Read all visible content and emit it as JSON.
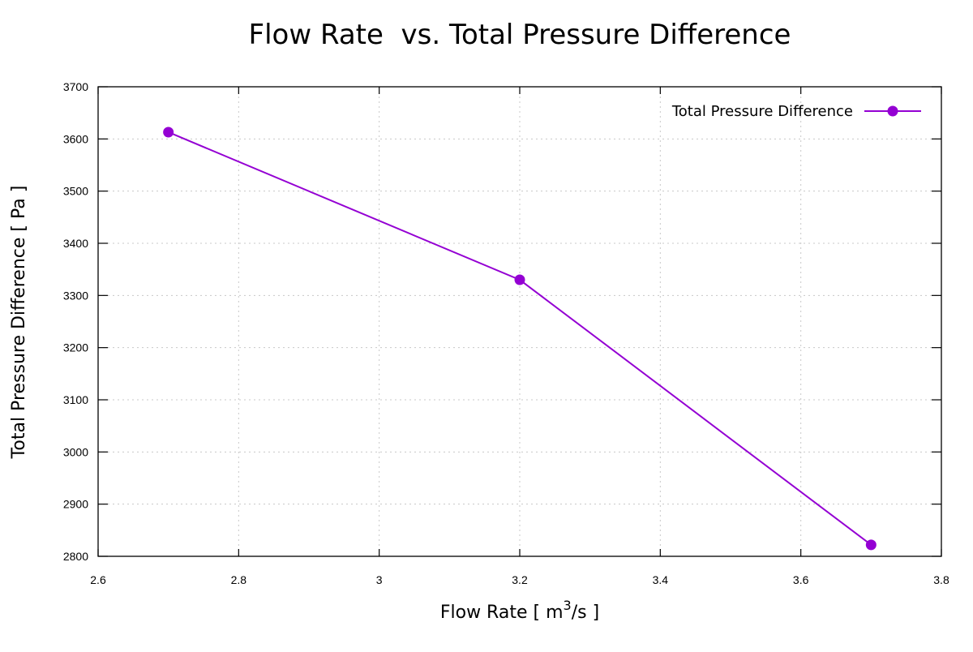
{
  "chart_data": {
    "type": "line",
    "title": "Flow Rate  vs. Total Pressure Difference",
    "xlabel_prefix": "Flow Rate [ m",
    "xlabel_sup": "3",
    "xlabel_suffix": "/s ]",
    "ylabel": "Total Pressure Difference [ Pa ]",
    "xlim": [
      2.6,
      3.8
    ],
    "ylim": [
      2800,
      3700
    ],
    "xticks": [
      2.6,
      2.8,
      3.0,
      3.2,
      3.4,
      3.6,
      3.8
    ],
    "xtick_labels": [
      "2.6",
      "2.8",
      "3",
      "3.2",
      "3.4",
      "3.6",
      "3.8"
    ],
    "yticks": [
      2800,
      2900,
      3000,
      3100,
      3200,
      3300,
      3400,
      3500,
      3600,
      3700
    ],
    "ytick_labels": [
      "2800",
      "2900",
      "3000",
      "3100",
      "3200",
      "3300",
      "3400",
      "3500",
      "3600",
      "3700"
    ],
    "grid": true,
    "legend_position": "top-right",
    "series": [
      {
        "name": "Total Pressure Difference",
        "color": "#9400d3",
        "x": [
          2.7,
          3.2,
          3.7
        ],
        "y": [
          3613,
          3330,
          2822
        ]
      }
    ]
  }
}
